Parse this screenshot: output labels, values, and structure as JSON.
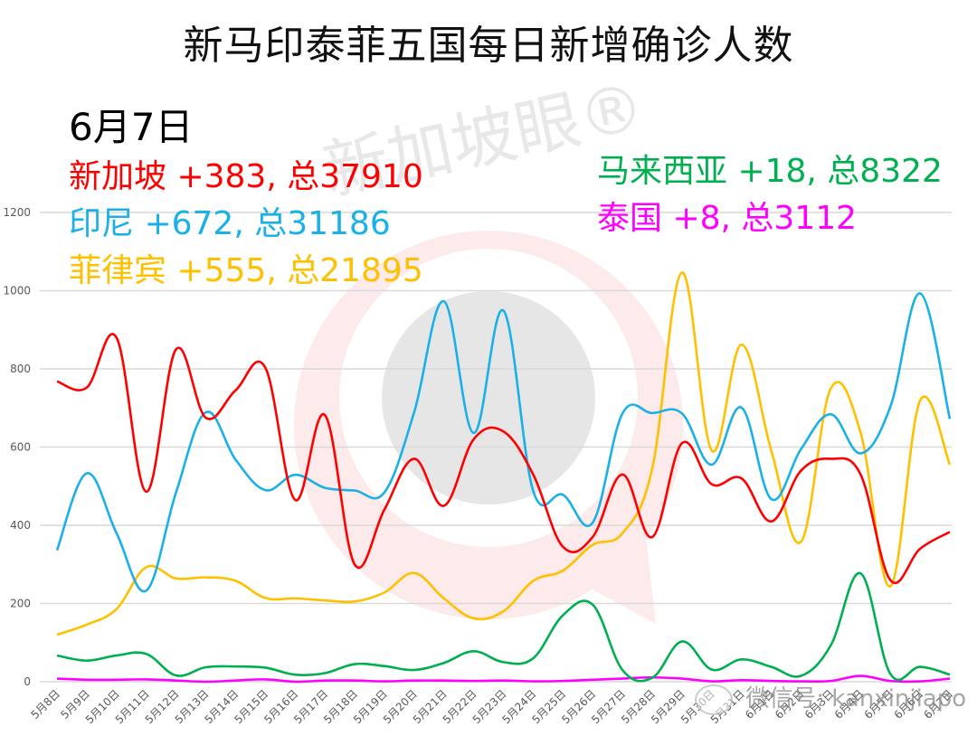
{
  "title": "新马印泰菲五国每日新增确诊人数",
  "date_label": "6月7日",
  "legend": {
    "singapore": "新加坡 +383, 总37910",
    "indonesia": "印尼 +672, 总31186",
    "philippines": "菲律宾 +555, 总21895",
    "malaysia": "马来西亚 +18, 总8322",
    "thailand": "泰国 +8, 总3112"
  },
  "watermark": {
    "center_text": "新加坡眼®",
    "bottom_text": "微信号: kanxinjiapo"
  },
  "colors": {
    "singapore": "#ff0000",
    "indonesia": "#1ab0e8",
    "philippines": "#ffc000",
    "malaysia": "#00b050",
    "thailand": "#ff00ff",
    "grid": "#d9d9d9",
    "axis_text": "#595959"
  },
  "chart_data": {
    "type": "line",
    "title": "新马印泰菲五国每日新增确诊人数",
    "xlabel": "",
    "ylabel": "",
    "ylim": [
      0,
      1200
    ],
    "yticks": [
      0,
      200,
      400,
      600,
      800,
      1000,
      1200
    ],
    "grid": true,
    "legend_position": "top (inline text annotations)",
    "categories": [
      "5月8日",
      "5月9日",
      "5月10日",
      "5月11日",
      "5月12日",
      "5月13日",
      "5月14日",
      "5月15日",
      "5月16日",
      "5月17日",
      "5月18日",
      "5月19日",
      "5月20日",
      "5月21日",
      "5月22日",
      "5月23日",
      "5月24日",
      "5月25日",
      "5月26日",
      "5月27日",
      "5月28日",
      "5月29日",
      "5月30日",
      "5月31日",
      "6月1日",
      "6月2日",
      "6月3日",
      "6月4日",
      "6月5日",
      "6月6日",
      "6月7日"
    ],
    "series": [
      {
        "name": "新加坡",
        "color": "#ff0000",
        "values": [
          768,
          752,
          880,
          486,
          850,
          675,
          745,
          803,
          465,
          682,
          300,
          440,
          570,
          450,
          620,
          640,
          530,
          345,
          370,
          530,
          370,
          610,
          505,
          520,
          410,
          540,
          570,
          530,
          260,
          340,
          383
        ]
      },
      {
        "name": "印尼",
        "color": "#1ab0e8",
        "values": [
          336,
          533,
          380,
          233,
          484,
          689,
          568,
          490,
          529,
          496,
          489,
          484,
          689,
          973,
          636,
          949,
          488,
          478,
          407,
          686,
          687,
          686,
          555,
          701,
          467,
          595,
          684,
          584,
          703,
          993,
          672
        ]
      },
      {
        "name": "菲律宾",
        "color": "#ffc000",
        "values": [
          120,
          146,
          186,
          293,
          264,
          267,
          258,
          214,
          213,
          208,
          205,
          228,
          278,
          213,
          162,
          180,
          258,
          284,
          350,
          380,
          545,
          1046,
          591,
          862,
          591,
          358,
          750,
          637,
          244,
          719,
          555
        ]
      },
      {
        "name": "马来西亚",
        "color": "#00b050",
        "values": [
          67,
          54,
          67,
          71,
          16,
          37,
          39,
          36,
          18,
          22,
          45,
          40,
          30,
          48,
          78,
          50,
          60,
          170,
          197,
          30,
          10,
          103,
          31,
          57,
          38,
          15,
          93,
          277,
          20,
          38,
          18
        ]
      },
      {
        "name": "泰国",
        "color": "#ff00ff",
        "values": [
          8,
          5,
          5,
          6,
          3,
          0,
          3,
          6,
          0,
          3,
          3,
          1,
          3,
          3,
          2,
          3,
          1,
          2,
          5,
          8,
          11,
          8,
          1,
          4,
          2,
          1,
          2,
          15,
          2,
          1,
          8
        ]
      }
    ],
    "annotations": [
      "6月7日",
      "新加坡 +383, 总37910",
      "印尼 +672, 总31186",
      "菲律宾 +555, 总21895",
      "马来西亚 +18, 总8322",
      "泰国 +8, 总3112"
    ]
  }
}
